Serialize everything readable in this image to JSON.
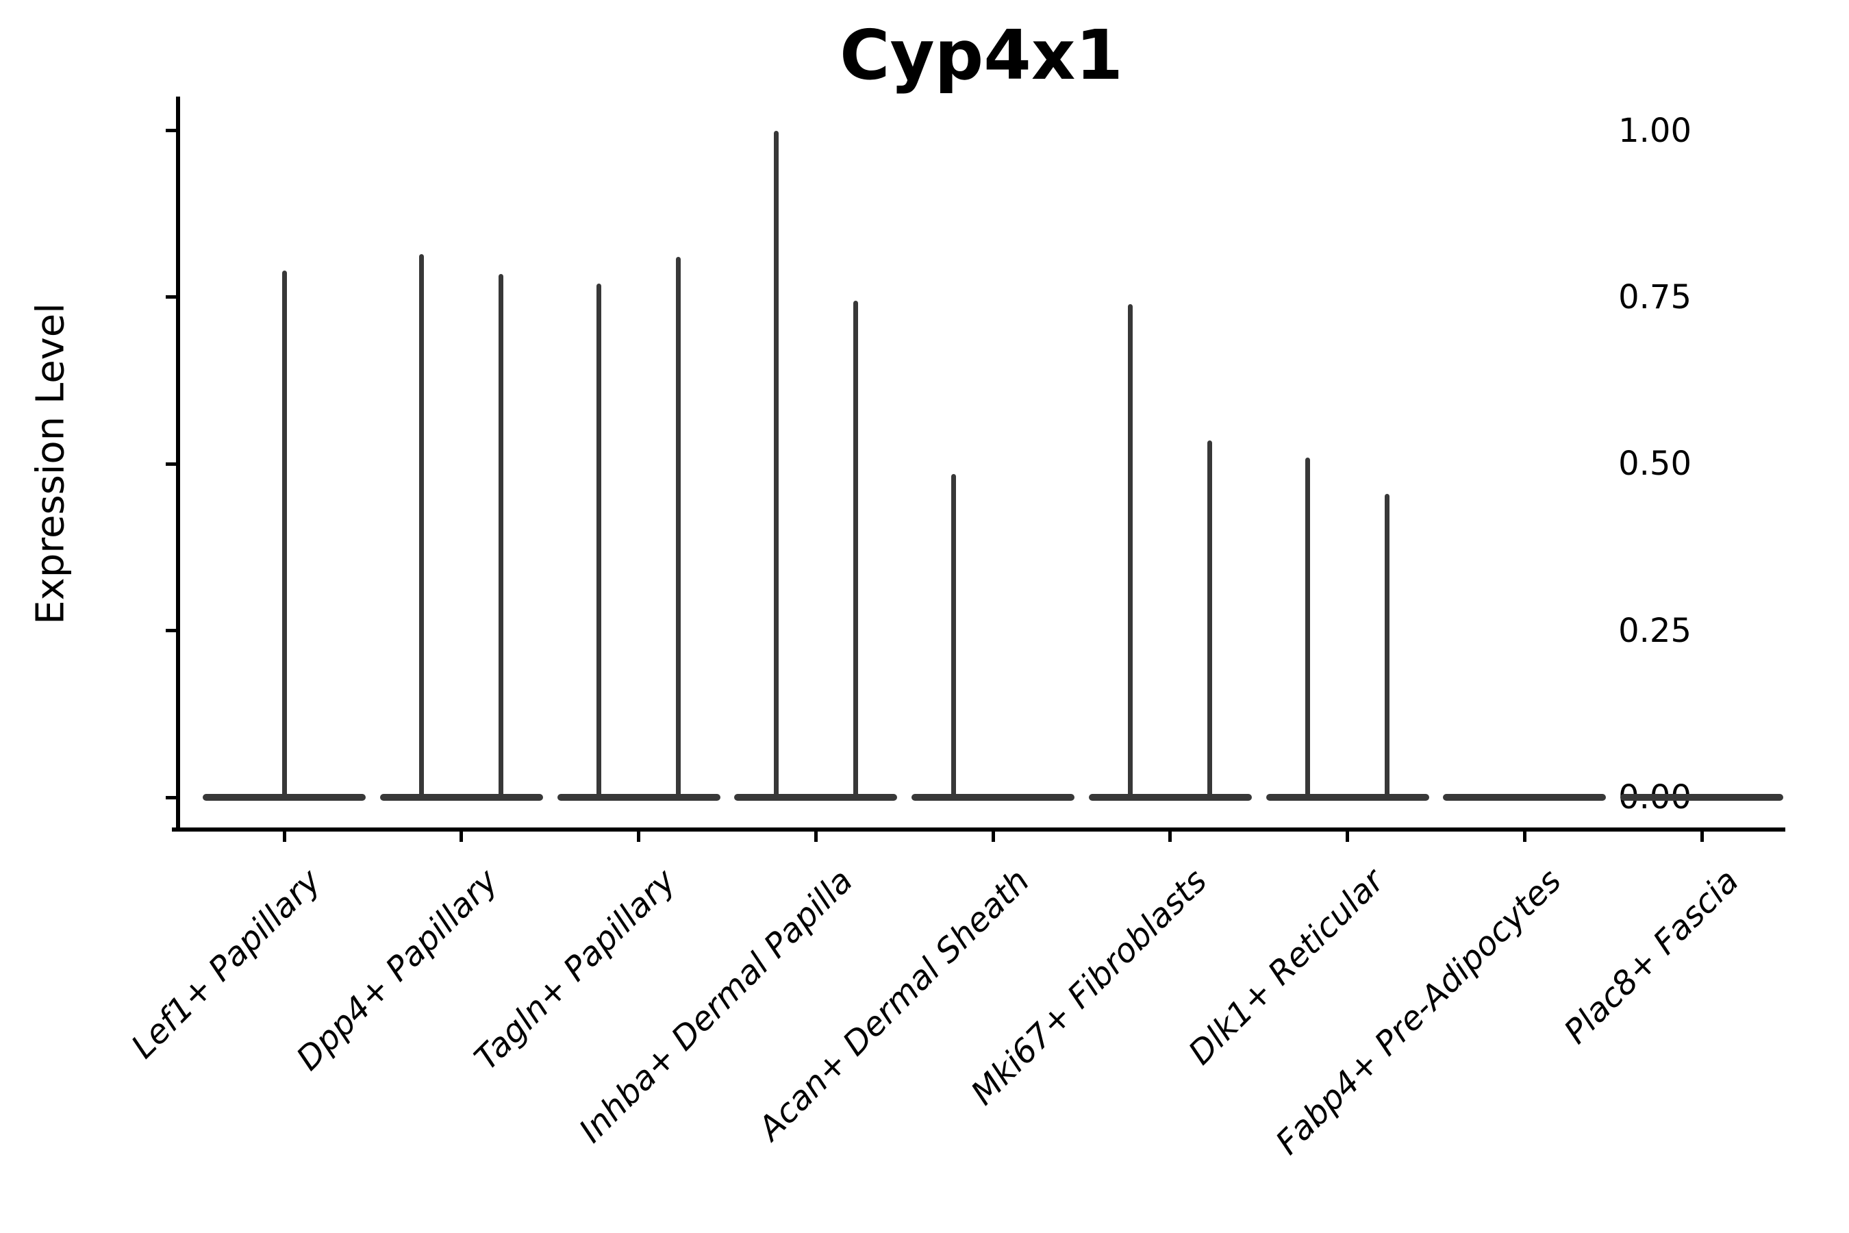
{
  "chart_data": {
    "type": "violin",
    "title": "Cyp4x1",
    "ylabel": "Expression Level",
    "xlabel": "",
    "ylim": [
      0,
      1.0
    ],
    "grid": false,
    "legend": "none",
    "yticks": [
      {
        "label": "0.00",
        "value": 0.0
      },
      {
        "label": "0.25",
        "value": 0.25
      },
      {
        "label": "0.50",
        "value": 0.5
      },
      {
        "label": "0.75",
        "value": 0.75
      },
      {
        "label": "1.00",
        "value": 1.0
      }
    ],
    "categories": [
      "Lef1+ Papillary",
      "Dpp4+ Papillary",
      "Tagln+ Papillary",
      "Inhba+ Dermal Papilla",
      "Acan+ Dermal Sheath",
      "Mki67+ Fibroblasts",
      "Dlk1+ Reticular",
      "Fabp4+ Pre-Adipocytes",
      "Plac8+ Fascia"
    ],
    "series": [
      {
        "category": "Lef1+ Papillary",
        "baseline_value": 0.0,
        "spikes": [
          {
            "position": "center",
            "value": 0.79
          }
        ]
      },
      {
        "category": "Dpp4+ Papillary",
        "baseline_value": 0.0,
        "spikes": [
          {
            "position": "left",
            "value": 0.815
          },
          {
            "position": "right",
            "value": 0.785
          }
        ]
      },
      {
        "category": "Tagln+ Papillary",
        "baseline_value": 0.0,
        "spikes": [
          {
            "position": "left",
            "value": 0.77
          },
          {
            "position": "right",
            "value": 0.81
          }
        ]
      },
      {
        "category": "Inhba+ Dermal Papilla",
        "baseline_value": 0.0,
        "spikes": [
          {
            "position": "left",
            "value": 1.0
          },
          {
            "position": "right",
            "value": 0.745
          }
        ]
      },
      {
        "category": "Acan+ Dermal Sheath",
        "baseline_value": 0.0,
        "spikes": [
          {
            "position": "left",
            "value": 0.485
          }
        ]
      },
      {
        "category": "Mki67+ Fibroblasts",
        "baseline_value": 0.0,
        "spikes": [
          {
            "position": "left",
            "value": 0.74
          },
          {
            "position": "right",
            "value": 0.535
          }
        ]
      },
      {
        "category": "Dlk1+ Reticular",
        "baseline_value": 0.0,
        "spikes": [
          {
            "position": "left",
            "value": 0.51
          },
          {
            "position": "right",
            "value": 0.455
          }
        ]
      },
      {
        "category": "Fabp4+ Pre-Adipocytes",
        "baseline_value": 0.0,
        "spikes": []
      },
      {
        "category": "Plac8+ Fascia",
        "baseline_value": 0.0,
        "spikes": []
      }
    ],
    "colors": {
      "violin": "#383838",
      "axis": "#000000",
      "text": "#000000",
      "background": "#ffffff"
    }
  }
}
